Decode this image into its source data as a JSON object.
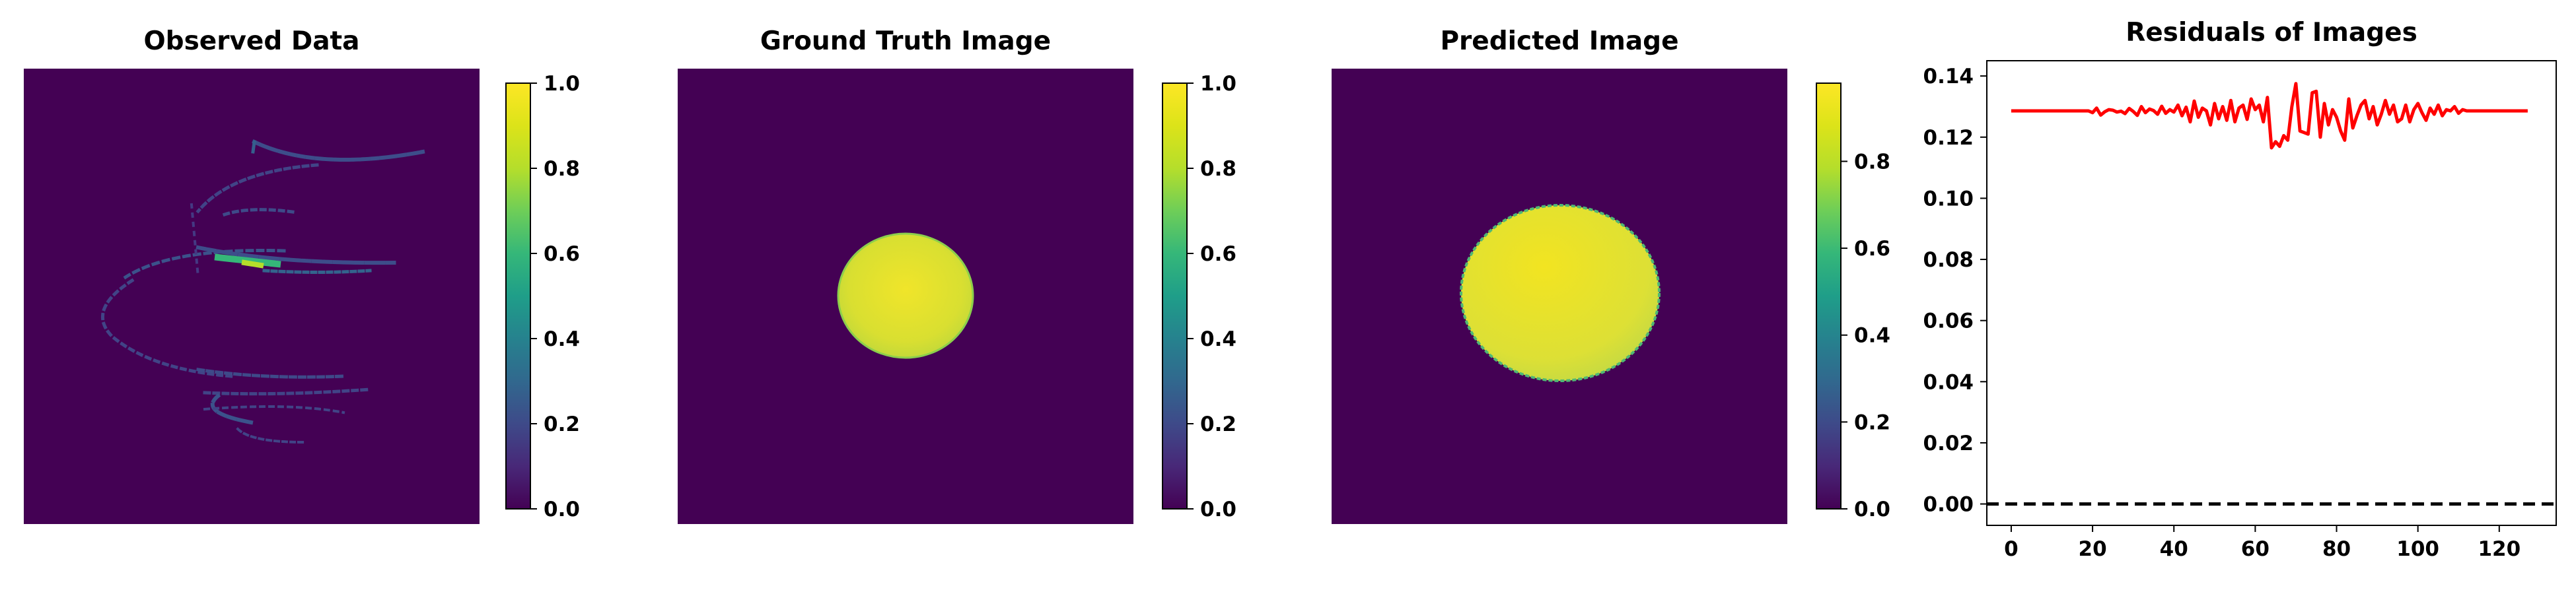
{
  "chart_data": [
    {
      "type": "heatmap",
      "title": "Observed Data",
      "description": "Sparse spiral of intensities on dark background",
      "colormap": "viridis",
      "colorbar": {
        "min": 0.0,
        "max": 1.0,
        "ticks": [
          "0.0",
          "0.2",
          "0.4",
          "0.6",
          "0.8",
          "1.0"
        ]
      }
    },
    {
      "type": "heatmap",
      "title": "Ground Truth Image",
      "description": "Uniform bright disk centered in image",
      "colormap": "viridis",
      "colorbar": {
        "min": 0.0,
        "max": 1.0,
        "ticks": [
          "0.0",
          "0.2",
          "0.4",
          "0.6",
          "0.8",
          "1.0"
        ]
      }
    },
    {
      "type": "heatmap",
      "title": "Predicted Image",
      "description": "Larger bright disk centered in image",
      "colormap": "viridis",
      "colorbar": {
        "min": 0.0,
        "max": 0.98,
        "ticks": [
          "0.0",
          "0.2",
          "0.4",
          "0.6",
          "0.8"
        ]
      }
    },
    {
      "type": "line",
      "title": "Residuals of Images",
      "xlim": [
        -6,
        134
      ],
      "ylim": [
        -0.007,
        0.145
      ],
      "xticks": [
        "0",
        "20",
        "40",
        "60",
        "80",
        "100",
        "120"
      ],
      "yticks": [
        "0.00",
        "0.02",
        "0.04",
        "0.06",
        "0.08",
        "0.10",
        "0.12",
        "0.14"
      ],
      "series": [
        {
          "color": "#ff0000",
          "x_start": 0,
          "values": [
            0.1286,
            0.1286,
            0.1286,
            0.1286,
            0.1286,
            0.1286,
            0.1286,
            0.1286,
            0.1286,
            0.1286,
            0.1286,
            0.1286,
            0.1286,
            0.1286,
            0.1286,
            0.1286,
            0.1286,
            0.1286,
            0.1286,
            0.1286,
            0.128,
            0.1295,
            0.1272,
            0.1283,
            0.129,
            0.1288,
            0.1282,
            0.1285,
            0.1277,
            0.1294,
            0.1284,
            0.1271,
            0.13,
            0.128,
            0.1292,
            0.1287,
            0.1275,
            0.1301,
            0.1278,
            0.129,
            0.1282,
            0.1305,
            0.127,
            0.1298,
            0.125,
            0.1318,
            0.1265,
            0.1295,
            0.1286,
            0.124,
            0.131,
            0.126,
            0.13,
            0.1255,
            0.132,
            0.125,
            0.1295,
            0.1305,
            0.1258,
            0.1325,
            0.129,
            0.1305,
            0.125,
            0.133,
            0.1165,
            0.1185,
            0.117,
            0.1205,
            0.119,
            0.13,
            0.1375,
            0.122,
            0.1215,
            0.121,
            0.1345,
            0.135,
            0.12,
            0.131,
            0.124,
            0.129,
            0.1265,
            0.122,
            0.119,
            0.1325,
            0.123,
            0.127,
            0.1305,
            0.132,
            0.126,
            0.13,
            0.124,
            0.1275,
            0.132,
            0.1275,
            0.1305,
            0.125,
            0.126,
            0.1305,
            0.125,
            0.129,
            0.131,
            0.128,
            0.1255,
            0.1295,
            0.1275,
            0.1305,
            0.127,
            0.129,
            0.1286,
            0.13,
            0.1278,
            0.129,
            0.1286,
            0.1286,
            0.1286,
            0.1286,
            0.1286,
            0.1286,
            0.1286,
            0.1286,
            0.1286,
            0.1286,
            0.1286,
            0.1286,
            0.1286,
            0.1286,
            0.1286,
            0.1286
          ]
        },
        {
          "color": "#000000",
          "style": "dashed",
          "values": [
            0,
            0
          ]
        }
      ]
    }
  ]
}
